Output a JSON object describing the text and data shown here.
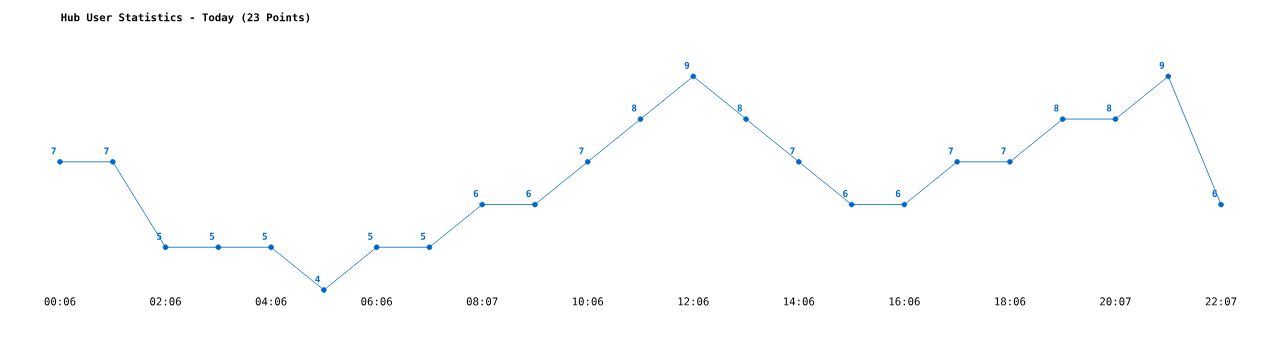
{
  "chart_data": {
    "type": "line",
    "title": "Hub User Statistics - Today (23 Points)",
    "categories": [
      "00:06",
      null,
      "02:06",
      null,
      "04:06",
      null,
      "06:06",
      null,
      "08:07",
      null,
      "10:06",
      null,
      "12:06",
      null,
      "14:06",
      null,
      "16:06",
      null,
      "18:06",
      null,
      "20:07",
      null,
      "22:07"
    ],
    "series": [
      {
        "color": "#0066cc",
        "values": [
          7,
          7,
          5,
          5,
          5,
          4,
          5,
          5,
          6,
          6,
          7,
          8,
          9,
          8,
          7,
          6,
          6,
          7,
          7,
          8,
          8,
          9,
          6
        ]
      }
    ],
    "marker": "circle",
    "data_labels": true
  }
}
